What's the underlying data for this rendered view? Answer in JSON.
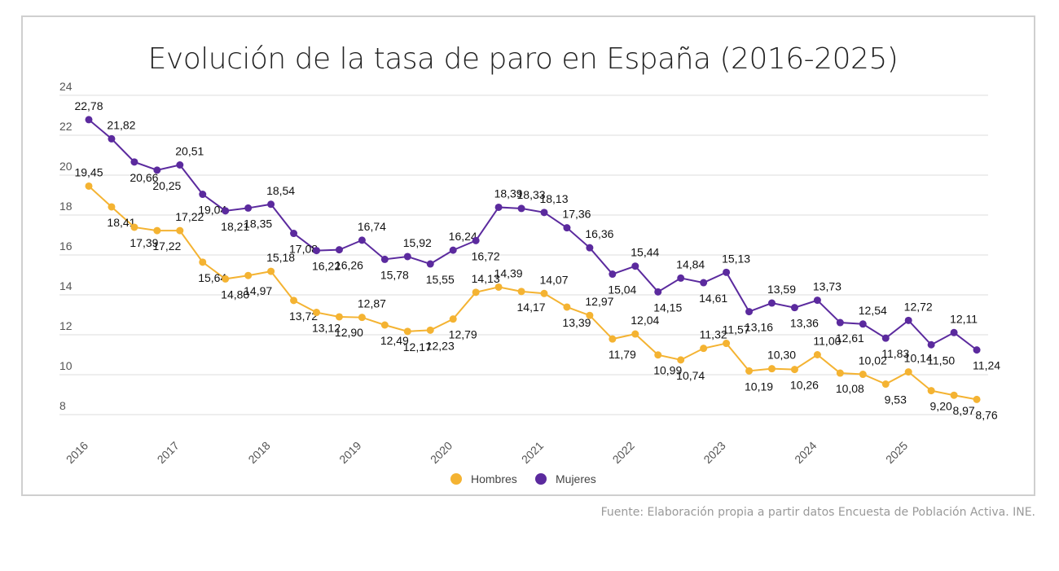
{
  "chart_data": {
    "type": "line",
    "title": "Evolución de la tasa de paro en España (2016-2025)",
    "source": "Fuente: Elaboración propia a partir datos Encuesta de Población Activa. INE.",
    "x_tick_labels": [
      "2016",
      "2017",
      "2018",
      "2019",
      "2020",
      "2021",
      "2022",
      "2023",
      "2024",
      "2025"
    ],
    "x_frequency": "quarterly",
    "x_start": "2016",
    "ylim": [
      8,
      24
    ],
    "y_ticks": [
      8,
      10,
      12,
      14,
      16,
      18,
      20,
      22,
      24
    ],
    "grid": true,
    "legend_position": "bottom",
    "decimal_separator": ",",
    "series": [
      {
        "name": "Hombres",
        "color": "#f4b332",
        "values": [
          19.45,
          18.41,
          17.39,
          17.22,
          17.22,
          15.64,
          14.8,
          14.97,
          15.18,
          13.72,
          13.12,
          12.9,
          12.87,
          12.49,
          12.17,
          12.23,
          12.79,
          14.13,
          14.39,
          14.17,
          14.07,
          13.39,
          12.97,
          11.79,
          12.04,
          10.99,
          10.74,
          11.32,
          11.57,
          10.19,
          10.3,
          10.26,
          11.0,
          10.08,
          10.02,
          9.53,
          10.14,
          9.2,
          8.97,
          8.76
        ]
      },
      {
        "name": "Mujeres",
        "color": "#5b2a9e",
        "values": [
          22.78,
          21.82,
          20.66,
          20.25,
          20.51,
          19.04,
          18.21,
          18.35,
          18.54,
          17.08,
          16.22,
          16.26,
          16.74,
          15.78,
          15.92,
          15.55,
          16.24,
          16.72,
          18.39,
          18.33,
          18.13,
          17.36,
          16.36,
          15.04,
          15.44,
          14.15,
          14.84,
          14.61,
          15.13,
          13.16,
          13.59,
          13.36,
          13.73,
          12.61,
          12.54,
          11.83,
          12.72,
          11.5,
          12.11,
          11.24
        ]
      }
    ]
  }
}
